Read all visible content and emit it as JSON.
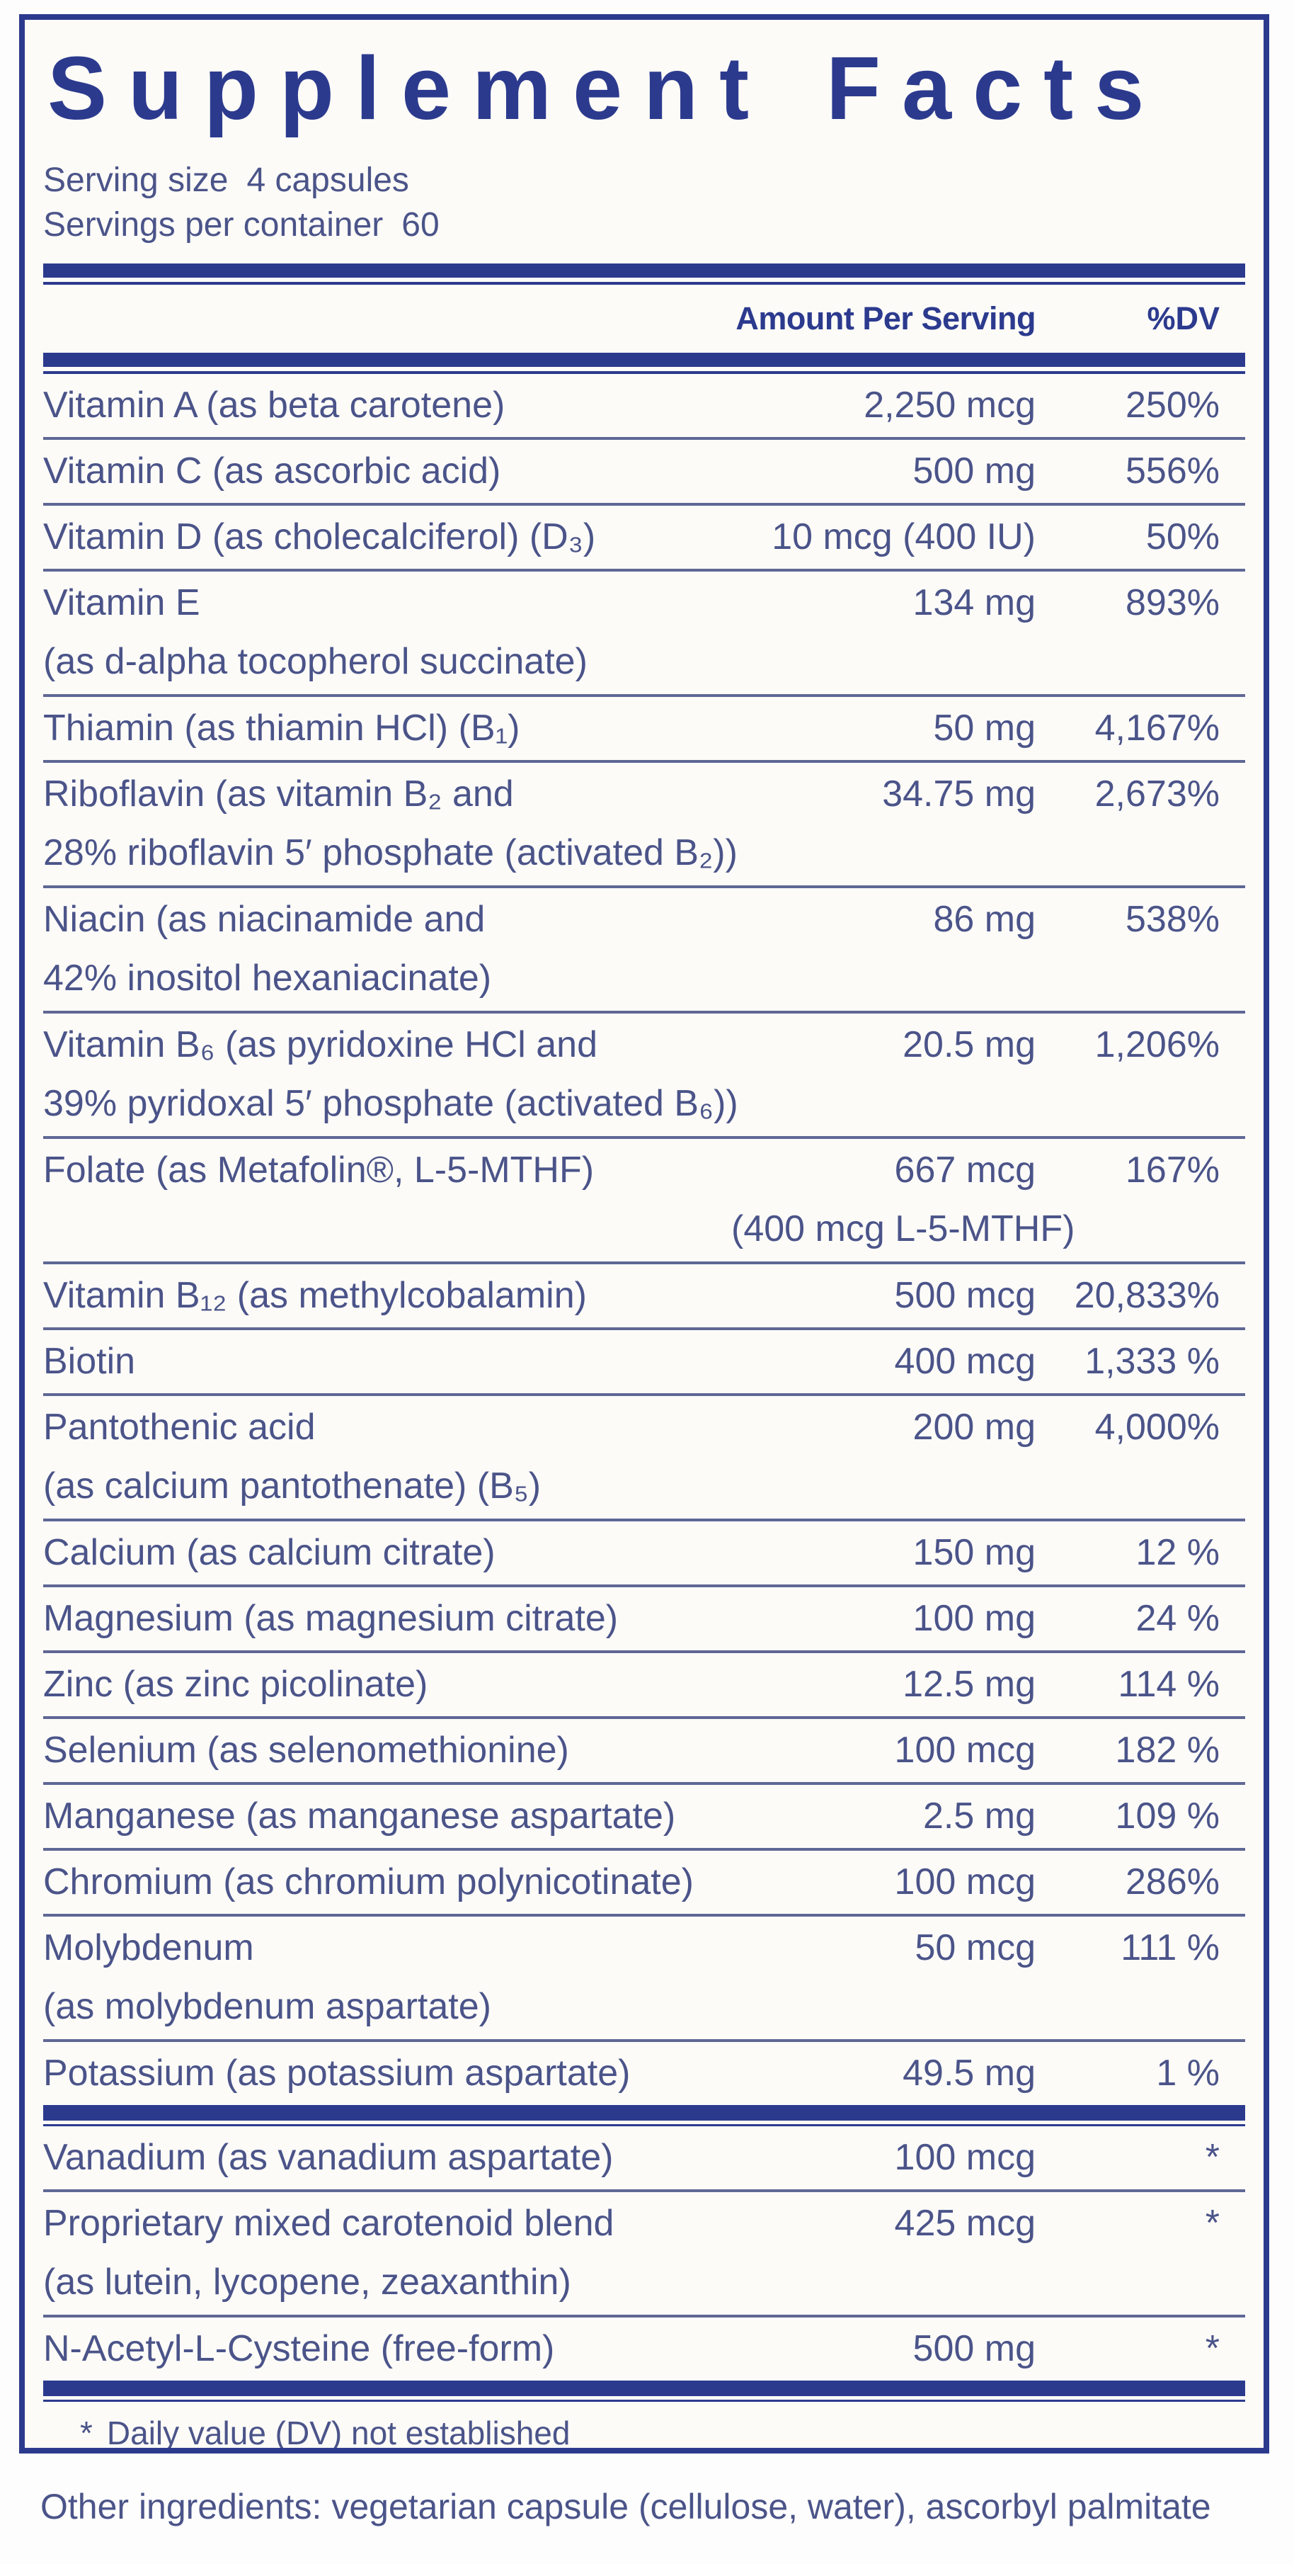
{
  "panel": {
    "title": "Supplement Facts",
    "serving_size_label": "Serving size",
    "serving_size_value": "4 capsules",
    "servings_per_container_label": "Servings per container",
    "servings_per_container_value": "60",
    "columns": {
      "amount_header": "Amount Per Serving",
      "dv_header": "%DV"
    },
    "footnote_marker": "*",
    "footnote_text": "Daily value (DV) not established"
  },
  "rows": [
    {
      "name": "Vitamin A (as beta carotene)",
      "name2": "",
      "amount": "2,250 mcg",
      "amount2": "",
      "dv": "250%"
    },
    {
      "name": "Vitamin C (as ascorbic acid)",
      "name2": "",
      "amount": "500 mg",
      "amount2": "",
      "dv": "556%"
    },
    {
      "name": "Vitamin D (as cholecalciferol) (D₃)",
      "name2": "",
      "amount": "10 mcg (400 IU)",
      "amount2": "",
      "dv": "50%"
    },
    {
      "name": "Vitamin E",
      "name2": "(as d-alpha tocopherol succinate)",
      "amount": "134 mg",
      "amount2": "",
      "dv": "893%"
    },
    {
      "name": "Thiamin (as thiamin HCl) (B₁)",
      "name2": "",
      "amount": "50 mg",
      "amount2": "",
      "dv": "4,167%"
    },
    {
      "name": "Riboflavin (as vitamin B₂ and",
      "name2": "28% riboflavin 5′ phosphate (activated B₂))",
      "amount": "34.75 mg",
      "amount2": "",
      "dv": "2,673%"
    },
    {
      "name": "Niacin (as niacinamide and",
      "name2": "42% inositol hexaniacinate)",
      "amount": "86 mg",
      "amount2": "",
      "dv": "538%"
    },
    {
      "name": "Vitamin B₆ (as pyridoxine HCl and",
      "name2": "39% pyridoxal 5′ phosphate (activated B₆))",
      "amount": "20.5 mg",
      "amount2": "",
      "dv": "1,206%"
    },
    {
      "name": "Folate (as Metafolin®, L-5-MTHF)",
      "name2": "",
      "amount": "667 mcg",
      "amount2": "(400 mcg L-5-MTHF)",
      "dv": "167%"
    },
    {
      "name": "Vitamin B₁₂ (as methylcobalamin)",
      "name2": "",
      "amount": "500 mcg",
      "amount2": "",
      "dv": "20,833%"
    },
    {
      "name": "Biotin",
      "name2": "",
      "amount": "400 mcg",
      "amount2": "",
      "dv": "1,333 %"
    },
    {
      "name": "Pantothenic acid",
      "name2": "(as calcium pantothenate) (B₅)",
      "amount": "200 mg",
      "amount2": "",
      "dv": "4,000%"
    },
    {
      "name": "Calcium (as calcium citrate)",
      "name2": "",
      "amount": "150 mg",
      "amount2": "",
      "dv": "12 %"
    },
    {
      "name": "Magnesium (as magnesium citrate)",
      "name2": "",
      "amount": "100 mg",
      "amount2": "",
      "dv": "24 %"
    },
    {
      "name": "Zinc (as zinc picolinate)",
      "name2": "",
      "amount": "12.5 mg",
      "amount2": "",
      "dv": "114 %"
    },
    {
      "name": "Selenium (as selenomethionine)",
      "name2": "",
      "amount": "100 mcg",
      "amount2": "",
      "dv": "182 %"
    },
    {
      "name": "Manganese (as manganese aspartate)",
      "name2": "",
      "amount": "2.5 mg",
      "amount2": "",
      "dv": "109 %"
    },
    {
      "name": "Chromium (as chromium polynicotinate)",
      "name2": "",
      "amount": "100 mcg",
      "amount2": "",
      "dv": "286%"
    },
    {
      "name": "Molybdenum",
      "name2": "(as molybdenum aspartate)",
      "amount": "50 mcg",
      "amount2": "",
      "dv": "111 %"
    },
    {
      "name": "Potassium (as potassium aspartate)",
      "name2": "",
      "amount": "49.5 mg",
      "amount2": "",
      "dv": "1 %"
    }
  ],
  "rows_no_dv": [
    {
      "name": "Vanadium (as vanadium aspartate)",
      "name2": "",
      "amount": "100 mcg",
      "amount2": "",
      "dv": "*"
    },
    {
      "name": "Proprietary mixed carotenoid blend",
      "name2": "(as lutein, lycopene, zeaxanthin)",
      "amount": "425 mcg",
      "amount2": "",
      "dv": "*"
    },
    {
      "name": "N-Acetyl-L-Cysteine (free-form)",
      "name2": "",
      "amount": "500 mg",
      "amount2": "",
      "dv": "*"
    }
  ],
  "other_ingredients": "Other ingredients: vegetarian capsule (cellulose, water), ascorbyl palmitate",
  "colors": {
    "navy": "#2c3a8e",
    "body_text": "#4b5489",
    "separator": "#5f6794",
    "label_background": "#fcfbf8",
    "page_background": "#fdfdfd"
  }
}
